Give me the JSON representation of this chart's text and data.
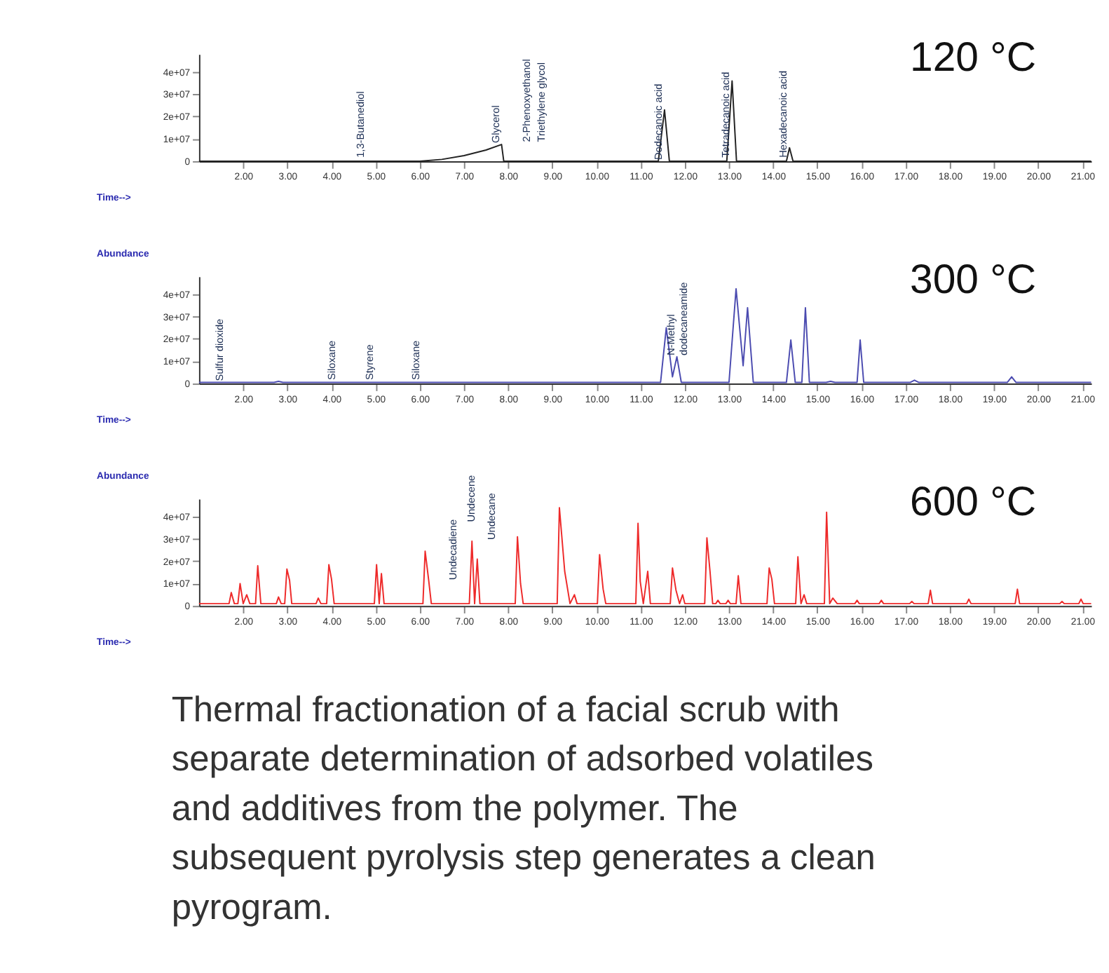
{
  "chart_data": [
    {
      "type": "line",
      "title": "120 °C",
      "xlabel": "Time-->",
      "grid": false,
      "marker": "none",
      "line_style": "solid",
      "xlim": [
        1.0,
        21.2
      ],
      "ylim": [
        0,
        48000000
      ],
      "xticks": [
        {
          "value": 2,
          "label": "2.00"
        },
        {
          "value": 3,
          "label": "3.00"
        },
        {
          "value": 4,
          "label": "4.00"
        },
        {
          "value": 5,
          "label": "5.00"
        },
        {
          "value": 6,
          "label": "6.00"
        },
        {
          "value": 7,
          "label": "7.00"
        },
        {
          "value": 8,
          "label": "8.00"
        },
        {
          "value": 9,
          "label": "9.00"
        },
        {
          "value": 10,
          "label": "10.00"
        },
        {
          "value": 11,
          "label": "11.00"
        },
        {
          "value": 12,
          "label": "12.00"
        },
        {
          "value": 13,
          "label": "13.00"
        },
        {
          "value": 14,
          "label": "14.00"
        },
        {
          "value": 15,
          "label": "15.00"
        },
        {
          "value": 16,
          "label": "16.00"
        },
        {
          "value": 17,
          "label": "17.00"
        },
        {
          "value": 18,
          "label": "18.00"
        },
        {
          "value": 19,
          "label": "19.00"
        },
        {
          "value": 20,
          "label": "20.00"
        },
        {
          "value": 21,
          "label": "21.00"
        }
      ],
      "yticks": [
        0,
        {
          "value": 10000000,
          "label": "1e+07"
        },
        {
          "value": 20000000,
          "label": "2e+07"
        },
        {
          "value": 30000000,
          "label": "3e+07"
        },
        {
          "value": 40000000,
          "label": "4e+07"
        }
      ],
      "series": [
        {
          "color": "#222222",
          "x": [
            1.0,
            6.0,
            6.5,
            7.0,
            7.5,
            7.85,
            7.9,
            11.4,
            11.54,
            11.65,
            12.95,
            13.07,
            13.17,
            14.3,
            14.37,
            14.45,
            21.2
          ],
          "values": [
            0,
            0,
            800000,
            2500000,
            5000000,
            7500000,
            0,
            0,
            23000000,
            0,
            0,
            36000000,
            0,
            0,
            6000000,
            0,
            0
          ]
        }
      ],
      "annotations": [
        {
          "text": "1,3-Butanediol",
          "x": 4.8,
          "y": 1000000
        },
        {
          "text": "Glycerol",
          "x": 7.85,
          "y": 7500000
        },
        {
          "text": "2-Phenoxyethanol",
          "x": 8.6,
          "y": 0
        },
        {
          "text": "Triethylene glycol",
          "x": 8.6,
          "y": 0
        },
        {
          "text": "Dodecanoic acid",
          "x": 11.54,
          "y": 0
        },
        {
          "text": "Tetradecanoic acid",
          "x": 13.07,
          "y": 1000000
        },
        {
          "text": "Hexadecanoic acid",
          "x": 14.37,
          "y": 1000000
        }
      ]
    },
    {
      "type": "line",
      "title": "300 °C",
      "xlabel": "Time-->",
      "ylabel": "Abundance",
      "grid": false,
      "marker": "none",
      "line_style": "solid",
      "xlim": [
        1.0,
        21.2
      ],
      "ylim": [
        0,
        48000000
      ],
      "xticks": [
        {
          "value": 2,
          "label": "2.00"
        },
        {
          "value": 3,
          "label": "3.00"
        },
        {
          "value": 4,
          "label": "4.00"
        },
        {
          "value": 5,
          "label": "5.00"
        },
        {
          "value": 6,
          "label": "6.00"
        },
        {
          "value": 7,
          "label": "7.00"
        },
        {
          "value": 8,
          "label": "8.00"
        },
        {
          "value": 9,
          "label": "9.00"
        },
        {
          "value": 10,
          "label": "10.00"
        },
        {
          "value": 11,
          "label": "11.00"
        },
        {
          "value": 12,
          "label": "12.00"
        },
        {
          "value": 13,
          "label": "13.00"
        },
        {
          "value": 14,
          "label": "14.00"
        },
        {
          "value": 15,
          "label": "15.00"
        },
        {
          "value": 16,
          "label": "16.00"
        },
        {
          "value": 17,
          "label": "17.00"
        },
        {
          "value": 18,
          "label": "18.00"
        },
        {
          "value": 19,
          "label": "19.00"
        },
        {
          "value": 20,
          "label": "20.00"
        },
        {
          "value": 21,
          "label": "21.00"
        }
      ],
      "yticks": [
        0,
        {
          "value": 10000000,
          "label": "1e+07"
        },
        {
          "value": 20000000,
          "label": "2e+07"
        },
        {
          "value": 30000000,
          "label": "3e+07"
        },
        {
          "value": 40000000,
          "label": "4e+07"
        }
      ],
      "series": [
        {
          "color": "#4b4bb0",
          "x": [
            1.0,
            2.7,
            2.8,
            2.9,
            11.45,
            11.58,
            11.72,
            11.82,
            11.92,
            13.0,
            13.16,
            13.32,
            13.42,
            13.55,
            14.3,
            14.4,
            14.5,
            14.65,
            14.73,
            14.82,
            15.2,
            15.3,
            15.4,
            15.9,
            15.97,
            16.05,
            17.1,
            17.2,
            17.3,
            19.3,
            19.4,
            19.5,
            21.2
          ],
          "values": [
            500000,
            500000,
            1000000,
            500000,
            500000,
            25000000,
            3000000,
            12000000,
            500000,
            500000,
            42500000,
            8000000,
            34000000,
            500000,
            500000,
            19500000,
            500000,
            500000,
            34000000,
            500000,
            500000,
            1000000,
            500000,
            500000,
            19500000,
            500000,
            500000,
            1500000,
            500000,
            500000,
            3000000,
            500000,
            500000
          ]
        }
      ],
      "annotations": [
        {
          "text": "Sulfur dioxide",
          "x": 1.6,
          "y": 500000
        },
        {
          "text": "Siloxane",
          "x": 4.15,
          "y": 1000000
        },
        {
          "text": "Styrene",
          "x": 5.0,
          "y": 1000000
        },
        {
          "text": "Siloxane",
          "x": 6.05,
          "y": 1000000
        },
        {
          "text": "N-Methyl\ndodecaneamide",
          "x": 11.82,
          "y": 12000000
        }
      ]
    },
    {
      "type": "line",
      "title": "600 °C",
      "xlabel": "Time-->",
      "ylabel": "Abundance",
      "grid": false,
      "marker": "none",
      "line_style": "solid",
      "xlim": [
        1.0,
        21.2
      ],
      "ylim": [
        0,
        48000000
      ],
      "xticks": [
        {
          "value": 2,
          "label": "2.00"
        },
        {
          "value": 3,
          "label": "3.00"
        },
        {
          "value": 4,
          "label": "4.00"
        },
        {
          "value": 5,
          "label": "5.00"
        },
        {
          "value": 6,
          "label": "6.00"
        },
        {
          "value": 7,
          "label": "7.00"
        },
        {
          "value": 8,
          "label": "8.00"
        },
        {
          "value": 9,
          "label": "9.00"
        },
        {
          "value": 10,
          "label": "10.00"
        },
        {
          "value": 11,
          "label": "11.00"
        },
        {
          "value": 12,
          "label": "12.00"
        },
        {
          "value": 13,
          "label": "13.00"
        },
        {
          "value": 14,
          "label": "14.00"
        },
        {
          "value": 15,
          "label": "15.00"
        },
        {
          "value": 16,
          "label": "16.00"
        },
        {
          "value": 17,
          "label": "17.00"
        },
        {
          "value": 18,
          "label": "18.00"
        },
        {
          "value": 19,
          "label": "19.00"
        },
        {
          "value": 20,
          "label": "20.00"
        },
        {
          "value": 21,
          "label": "21.00"
        }
      ],
      "yticks": [
        0,
        {
          "value": 10000000,
          "label": "1e+07"
        },
        {
          "value": 20000000,
          "label": "2e+07"
        },
        {
          "value": 30000000,
          "label": "3e+07"
        },
        {
          "value": 40000000,
          "label": "4e+07"
        }
      ],
      "series": [
        {
          "color": "#ee2a2a",
          "x": [
            1.0,
            1.68,
            1.73,
            1.8,
            1.88,
            1.93,
            2.0,
            2.08,
            2.15,
            2.28,
            2.33,
            2.4,
            2.75,
            2.8,
            2.86,
            2.94,
            2.99,
            3.05,
            3.1,
            3.65,
            3.7,
            3.76,
            3.89,
            3.94,
            4.0,
            4.06,
            4.97,
            5.02,
            5.08,
            5.13,
            5.19,
            6.07,
            6.12,
            6.2,
            6.26,
            7.12,
            7.18,
            7.24,
            7.3,
            7.36,
            8.16,
            8.21,
            8.28,
            8.34,
            9.11,
            9.16,
            9.28,
            9.4,
            9.5,
            9.56,
            10.02,
            10.07,
            10.15,
            10.21,
            10.89,
            10.94,
            10.99,
            11.06,
            11.16,
            11.22,
            11.67,
            11.72,
            11.8,
            11.88,
            11.95,
            12.0,
            12.45,
            12.5,
            12.57,
            12.63,
            12.7,
            12.75,
            12.8,
            12.93,
            12.98,
            13.03,
            13.16,
            13.21,
            13.27,
            13.86,
            13.91,
            13.97,
            14.03,
            14.51,
            14.56,
            14.63,
            14.7,
            14.76,
            15.16,
            15.21,
            15.28,
            15.35,
            15.45,
            15.85,
            15.9,
            15.95,
            16.4,
            16.45,
            16.5,
            17.09,
            17.14,
            17.19,
            17.51,
            17.56,
            17.61,
            18.38,
            18.43,
            18.48,
            19.48,
            19.53,
            19.58,
            20.49,
            20.54,
            20.59,
            20.92,
            20.97,
            21.02,
            21.2
          ],
          "values": [
            1000000,
            1000000,
            6000000,
            1000000,
            1000000,
            10000000,
            1000000,
            5000000,
            1000000,
            1000000,
            18000000,
            1000000,
            1000000,
            4000000,
            1000000,
            1000000,
            16500000,
            11500000,
            1000000,
            1000000,
            3500000,
            1000000,
            1000000,
            18500000,
            12000000,
            1000000,
            1000000,
            18500000,
            1000000,
            14500000,
            1000000,
            1000000,
            24500000,
            11500000,
            1000000,
            1000000,
            29000000,
            1000000,
            21000000,
            1000000,
            1000000,
            31000000,
            10000000,
            1000000,
            1000000,
            44000000,
            15500000,
            1000000,
            5000000,
            1000000,
            1000000,
            23000000,
            7500000,
            1000000,
            1000000,
            37000000,
            11000000,
            1000000,
            15500000,
            1000000,
            1000000,
            17000000,
            7000000,
            1000000,
            5000000,
            1000000,
            1000000,
            30500000,
            15500000,
            1000000,
            1000000,
            2500000,
            1000000,
            1000000,
            2500000,
            1000000,
            1000000,
            13500000,
            1000000,
            1000000,
            17000000,
            12000000,
            1000000,
            1000000,
            22000000,
            1000000,
            5000000,
            1000000,
            1000000,
            42000000,
            1000000,
            3500000,
            1000000,
            1000000,
            2500000,
            1000000,
            1000000,
            2500000,
            1000000,
            1000000,
            2000000,
            1000000,
            1000000,
            7000000,
            1000000,
            1000000,
            3000000,
            1000000,
            1000000,
            7500000,
            1000000,
            1000000,
            2000000,
            1000000,
            1000000,
            3000000,
            1000000,
            1000000
          ]
        }
      ],
      "annotations": [
        {
          "text": "Undecadiene",
          "x": 7.1,
          "y": 3000000
        },
        {
          "text": "Undecene",
          "x": 7.18,
          "y": 29000000
        },
        {
          "text": "Undecane",
          "x": 7.3,
          "y": 21000000
        },
        "Thermal fractionation of a facial scrub with separate determination of adsorbed volatiles and additives from the polymer. The subsequent pyrolysis step generates a clean pyrogram."
      ]
    }
  ]
}
